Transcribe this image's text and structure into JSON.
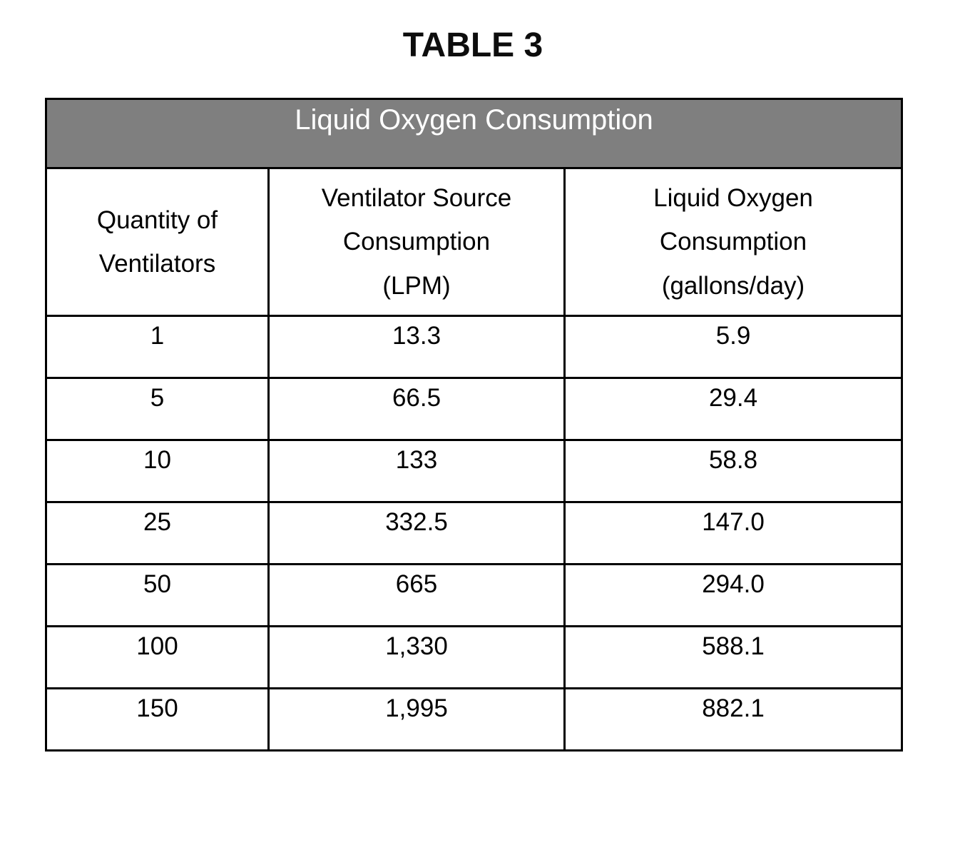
{
  "page": {
    "title": "TABLE 3"
  },
  "colors": {
    "banner_background": "#7f7f7f",
    "banner_text": "#ffffff",
    "border": "#000000",
    "body_text": "#000000",
    "page_background": "#ffffff"
  },
  "table": {
    "banner": "Liquid Oxygen Consumption",
    "columns": [
      {
        "label": "Quantity of Ventilators",
        "lines": [
          "Quantity of",
          "Ventilators"
        ]
      },
      {
        "label": "Ventilator Source Consumption (LPM)",
        "lines": [
          "Ventilator Source",
          "Consumption",
          "(LPM)"
        ]
      },
      {
        "label": "Liquid Oxygen Consumption (gallons/day)",
        "lines": [
          "Liquid Oxygen",
          "Consumption",
          "(gallons/day)"
        ]
      }
    ],
    "rows": [
      {
        "quantity": "1",
        "lpm": "13.3",
        "gallons": "5.9"
      },
      {
        "quantity": "5",
        "lpm": "66.5",
        "gallons": "29.4"
      },
      {
        "quantity": "10",
        "lpm": "133",
        "gallons": "58.8"
      },
      {
        "quantity": "25",
        "lpm": "332.5",
        "gallons": "147.0"
      },
      {
        "quantity": "50",
        "lpm": "665",
        "gallons": "294.0"
      },
      {
        "quantity": "100",
        "lpm": "1,330",
        "gallons": "588.1"
      },
      {
        "quantity": "150",
        "lpm": "1,995",
        "gallons": "882.1"
      }
    ]
  }
}
